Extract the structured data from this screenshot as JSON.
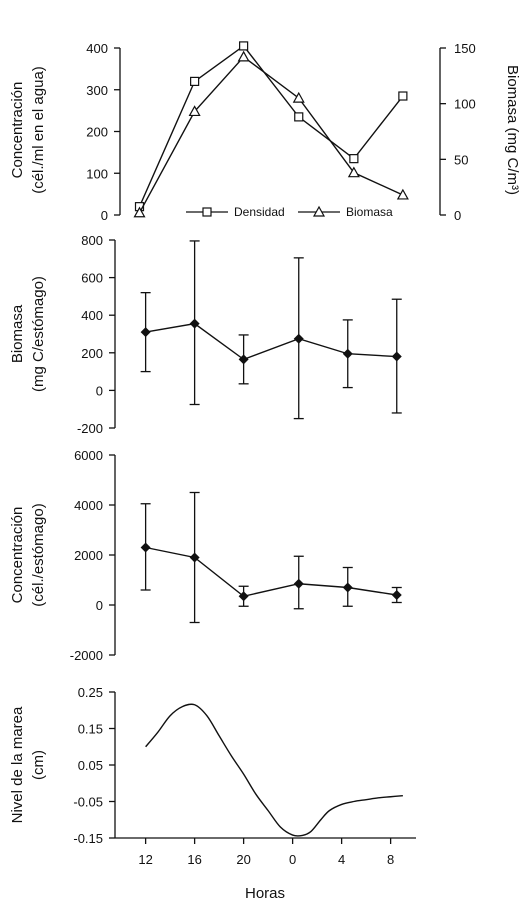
{
  "chart_data": [
    {
      "type": "line",
      "ylabel_left": [
        "Concentración",
        "(cél./ml en el agua)"
      ],
      "ylabel_right": "Biomasa (mg C/m³)",
      "ylim": [
        0,
        400
      ],
      "y2lim": [
        0,
        150
      ],
      "yticks": [
        "400",
        "300",
        "200",
        "100",
        "0"
      ],
      "y2ticks": [
        "150",
        "100",
        "50",
        "0"
      ],
      "legend_position": "bottom-center",
      "series": [
        {
          "name": "Densidad",
          "axis": "left",
          "marker": "square",
          "x": [
            11.5,
            16,
            20,
            24.5,
            29,
            33
          ],
          "values": [
            20,
            320,
            405,
            235,
            135,
            285
          ]
        },
        {
          "name": "Biomasa",
          "axis": "right",
          "marker": "triangle",
          "x": [
            11.5,
            16,
            20,
            24.5,
            29,
            33
          ],
          "values": [
            2,
            93,
            142,
            105,
            38,
            18
          ]
        }
      ]
    },
    {
      "type": "line",
      "ylabel": [
        "Biomasa",
        "(mg C/estómago)"
      ],
      "ylim": [
        -200,
        800
      ],
      "yticks": [
        "800",
        "600",
        "400",
        "200",
        "0",
        "-200"
      ],
      "marker": "diamond",
      "points": [
        {
          "x": 12,
          "y": 310,
          "err_low": 100,
          "err_high": 520
        },
        {
          "x": 16,
          "y": 355,
          "err_low": -75,
          "err_high": 795
        },
        {
          "x": 20,
          "y": 165,
          "err_low": 35,
          "err_high": 295
        },
        {
          "x": 24.5,
          "y": 275,
          "err_low": -150,
          "err_high": 705
        },
        {
          "x": 28.5,
          "y": 195,
          "err_low": 15,
          "err_high": 375
        },
        {
          "x": 32.5,
          "y": 180,
          "err_low": -120,
          "err_high": 485
        }
      ]
    },
    {
      "type": "line",
      "ylabel": [
        "Concentración",
        "(cél./estómago)"
      ],
      "ylim": [
        -2000,
        6000
      ],
      "yticks": [
        "6000",
        "4000",
        "2000",
        "0",
        "-2000"
      ],
      "marker": "diamond",
      "points": [
        {
          "x": 12,
          "y": 2300,
          "err_low": 600,
          "err_high": 4050
        },
        {
          "x": 16,
          "y": 1900,
          "err_low": -700,
          "err_high": 4500
        },
        {
          "x": 20,
          "y": 350,
          "err_low": -50,
          "err_high": 750
        },
        {
          "x": 24.5,
          "y": 850,
          "err_low": -150,
          "err_high": 1950
        },
        {
          "x": 28.5,
          "y": 700,
          "err_low": -50,
          "err_high": 1500
        },
        {
          "x": 32.5,
          "y": 400,
          "err_low": 100,
          "err_high": 700
        }
      ]
    },
    {
      "type": "line",
      "ylabel": [
        "Nivel de la marea",
        "(cm)"
      ],
      "ylim": [
        -0.15,
        0.25
      ],
      "yticks": [
        "0.25",
        "0.15",
        "0.05",
        "-0.05",
        "-0.15"
      ],
      "xlabel": "Horas",
      "xticks": [
        "12",
        "16",
        "20",
        "0",
        "4",
        "8"
      ],
      "curve": {
        "x": [
          12,
          13,
          14,
          15,
          16,
          17,
          18,
          19,
          20,
          21,
          22,
          23,
          24,
          24.8,
          25.5,
          26.3,
          27,
          28,
          29,
          30,
          31,
          32,
          33
        ],
        "y": [
          0.1,
          0.14,
          0.185,
          0.21,
          0.215,
          0.185,
          0.13,
          0.075,
          0.025,
          -0.03,
          -0.075,
          -0.12,
          -0.142,
          -0.143,
          -0.132,
          -0.1,
          -0.075,
          -0.058,
          -0.05,
          -0.045,
          -0.04,
          -0.037,
          -0.034
        ]
      }
    }
  ]
}
